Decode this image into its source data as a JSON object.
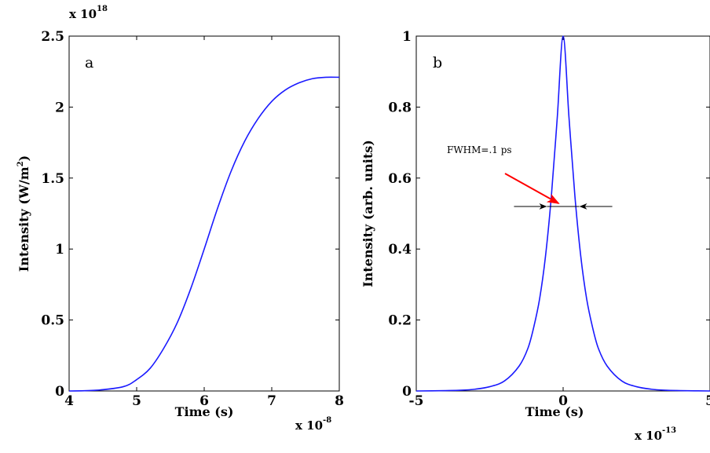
{
  "chart_data": [
    {
      "type": "line",
      "panel_label": "a",
      "xlabel": "Time (s)",
      "ylabel": "Intensity (W/m2)",
      "ylabel_main": "Intensity (W/m",
      "ylabel_sup": "2",
      "ylabel_end": ")",
      "xlim": [
        4,
        8
      ],
      "ylim": [
        0,
        2.5
      ],
      "xticks": [
        "4",
        "5",
        "6",
        "7",
        "8"
      ],
      "yticks": [
        "0",
        "0.5",
        "1",
        "1.5",
        "2",
        "2.5"
      ],
      "x_multiplier": "x 10",
      "x_multiplier_exp": "-8",
      "y_multiplier": "x 10",
      "y_multiplier_exp": "18",
      "grid": false,
      "series": [
        {
          "color": "#1a1aff",
          "x": [
            4.0,
            4.4,
            4.8,
            5.0,
            5.2,
            5.4,
            5.6,
            5.8,
            6.0,
            6.2,
            6.4,
            6.6,
            6.8,
            7.0,
            7.2,
            7.4,
            7.6,
            7.8,
            8.0
          ],
          "y": [
            0.0,
            0.005,
            0.03,
            0.08,
            0.16,
            0.3,
            0.48,
            0.72,
            1.0,
            1.29,
            1.55,
            1.76,
            1.92,
            2.04,
            2.12,
            2.17,
            2.2,
            2.21,
            2.21
          ]
        }
      ]
    },
    {
      "type": "line",
      "panel_label": "b",
      "xlabel": "Time (s)",
      "ylabel": "Intensity (arb. units)",
      "xlim": [
        -5,
        5
      ],
      "ylim": [
        0,
        1
      ],
      "xticks": [
        "-5",
        "0",
        "5"
      ],
      "yticks": [
        "0",
        "0.2",
        "0.4",
        "0.6",
        "0.8",
        "1"
      ],
      "x_multiplier": "x 10",
      "x_multiplier_exp": "-13",
      "grid": false,
      "annotation": {
        "text": "FWHM=.1 ps",
        "line_y": 0.52,
        "left_x": -0.55,
        "right_x": 0.55,
        "arrow_color": "#ff0000"
      },
      "series": [
        {
          "color": "#1a1aff",
          "x": [
            -5,
            -4,
            -3.5,
            -3,
            -2.5,
            -2,
            -1.5,
            -1.2,
            -1,
            -0.8,
            -0.6,
            -0.4,
            -0.2,
            0,
            0.2,
            0.4,
            0.6,
            0.8,
            1,
            1.2,
            1.5,
            2,
            2.5,
            3,
            3.5,
            4,
            5
          ],
          "y": [
            0.0,
            0.001,
            0.002,
            0.005,
            0.012,
            0.028,
            0.07,
            0.12,
            0.18,
            0.26,
            0.38,
            0.55,
            0.77,
            1.0,
            0.77,
            0.55,
            0.38,
            0.26,
            0.18,
            0.12,
            0.07,
            0.028,
            0.012,
            0.005,
            0.002,
            0.001,
            0.0
          ]
        }
      ]
    }
  ]
}
